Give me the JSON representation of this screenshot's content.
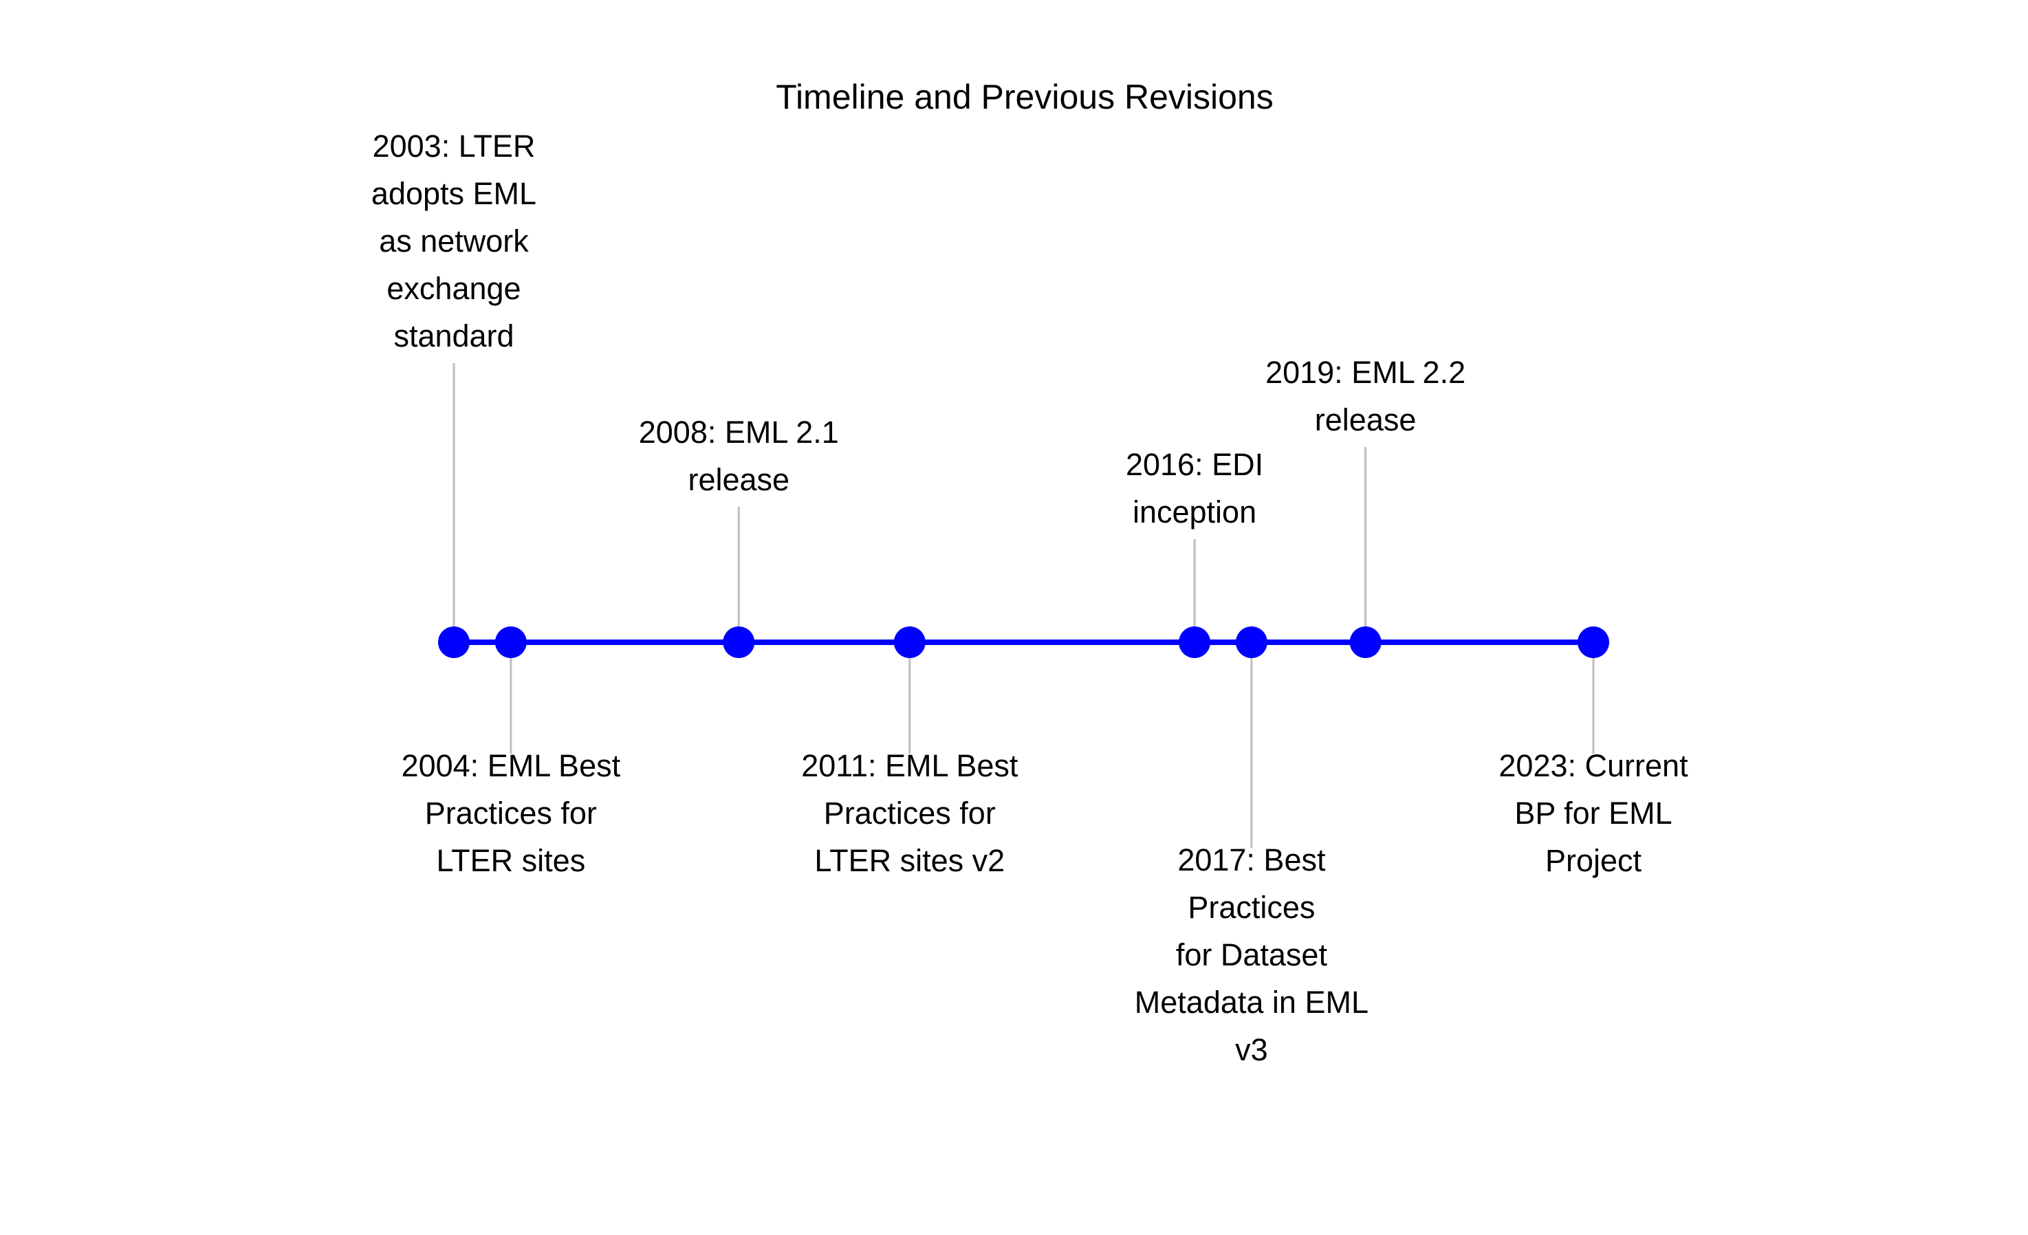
{
  "title": "Timeline and Previous Revisions",
  "colors": {
    "axis": "#0000ff",
    "marker": "#0000ff",
    "connector": "#bebebe",
    "text": "#000000",
    "background": "#ffffff"
  },
  "chart_data": {
    "type": "timeline",
    "x_range": [
      2003,
      2023
    ],
    "events": [
      {
        "year": 2003,
        "side": "above",
        "label_lines": [
          "2003: LTER",
          "adopts EML",
          "as network",
          "exchange",
          "standard"
        ]
      },
      {
        "year": 2004,
        "side": "below",
        "label_lines": [
          "2004: EML Best",
          "Practices for",
          "LTER sites"
        ]
      },
      {
        "year": 2008,
        "side": "above",
        "label_lines": [
          "2008: EML 2.1",
          "release"
        ]
      },
      {
        "year": 2011,
        "side": "below",
        "label_lines": [
          "2011: EML Best",
          "Practices for",
          "LTER sites v2"
        ]
      },
      {
        "year": 2016,
        "side": "above",
        "label_lines": [
          "2016: EDI",
          "inception"
        ]
      },
      {
        "year": 2017,
        "side": "below",
        "label_lines": [
          "2017: Best",
          "Practices",
          "for Dataset",
          "Metadata in EML",
          "v3"
        ]
      },
      {
        "year": 2019,
        "side": "above",
        "label_lines": [
          "2019: EML 2.2",
          "release"
        ]
      },
      {
        "year": 2023,
        "side": "below",
        "label_lines": [
          "2023: Current",
          "BP for EML",
          "Project"
        ]
      }
    ]
  }
}
